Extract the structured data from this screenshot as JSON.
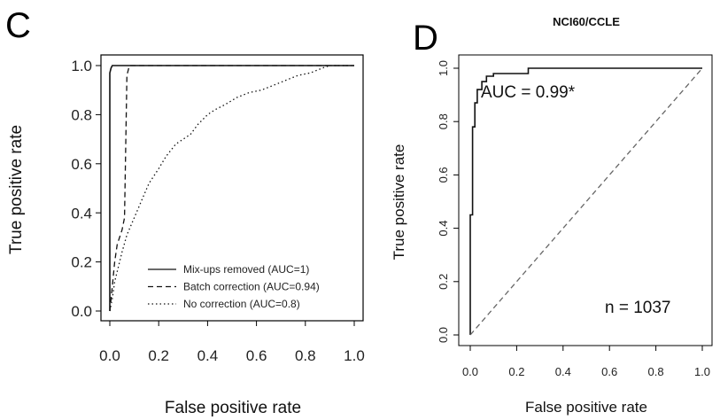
{
  "chart_data": [
    {
      "panel": "C",
      "type": "line",
      "title": "",
      "xlabel": "False positive rate",
      "ylabel": "True positive rate",
      "xlim": [
        0,
        1
      ],
      "ylim": [
        0,
        1
      ],
      "xticks": [
        "0.0",
        "0.2",
        "0.4",
        "0.6",
        "0.8",
        "1.0"
      ],
      "yticks": [
        "0.0",
        "0.2",
        "0.4",
        "0.6",
        "0.8",
        "1.0"
      ],
      "grid": false,
      "legend_position": "bottom-right",
      "series": [
        {
          "name": "Mix-ups removed (AUC=1)",
          "line_style": "solid",
          "x": [
            0.0,
            0.0,
            0.005,
            0.01,
            1.0
          ],
          "y": [
            0.0,
            0.97,
            0.99,
            1.0,
            1.0
          ]
        },
        {
          "name": "Batch correction (AUC=0.94)",
          "line_style": "dashed",
          "x": [
            0.0,
            0.01,
            0.02,
            0.03,
            0.04,
            0.05,
            0.06,
            0.07,
            0.08,
            1.0
          ],
          "y": [
            0.0,
            0.1,
            0.2,
            0.27,
            0.3,
            0.33,
            0.38,
            0.96,
            1.0,
            1.0
          ]
        },
        {
          "name": "No correction (AUC=0.8)",
          "line_style": "dotted",
          "x": [
            0.0,
            0.01,
            0.02,
            0.05,
            0.07,
            0.1,
            0.13,
            0.16,
            0.2,
            0.23,
            0.27,
            0.3,
            0.33,
            0.36,
            0.4,
            0.43,
            0.47,
            0.52,
            0.57,
            0.62,
            0.67,
            0.72,
            0.77,
            0.82,
            0.87,
            0.9,
            0.93,
            1.0
          ],
          "y": [
            0.0,
            0.05,
            0.12,
            0.24,
            0.31,
            0.38,
            0.45,
            0.52,
            0.58,
            0.63,
            0.68,
            0.7,
            0.72,
            0.76,
            0.8,
            0.82,
            0.84,
            0.87,
            0.89,
            0.9,
            0.92,
            0.94,
            0.96,
            0.97,
            0.99,
            1.0,
            1.0,
            1.0
          ]
        }
      ]
    },
    {
      "panel": "D",
      "type": "line",
      "title": "NCI60/CCLE",
      "xlabel": "False positive rate",
      "ylabel": "True positive rate",
      "xlim": [
        0,
        1
      ],
      "ylim": [
        0,
        1
      ],
      "xticks": [
        "0.0",
        "0.2",
        "0.4",
        "0.6",
        "0.8",
        "1.0"
      ],
      "yticks": [
        "0.0",
        "0.2",
        "0.4",
        "0.6",
        "0.8",
        "1.0"
      ],
      "grid": false,
      "annotations": [
        "AUC = 0.99*",
        "n = 1037"
      ],
      "series": [
        {
          "line_style": "solid",
          "x": [
            0.0,
            0.0,
            0.01,
            0.01,
            0.02,
            0.02,
            0.03,
            0.03,
            0.05,
            0.05,
            0.07,
            0.07,
            0.1,
            0.1,
            0.25,
            0.25,
            1.0
          ],
          "y": [
            0.0,
            0.45,
            0.45,
            0.78,
            0.78,
            0.87,
            0.87,
            0.92,
            0.92,
            0.95,
            0.95,
            0.97,
            0.97,
            0.98,
            0.98,
            1.0,
            1.0
          ]
        },
        {
          "line_style": "dashed",
          "color": "#666666",
          "x": [
            0.0,
            1.0
          ],
          "y": [
            0.0,
            1.0
          ]
        }
      ]
    }
  ]
}
